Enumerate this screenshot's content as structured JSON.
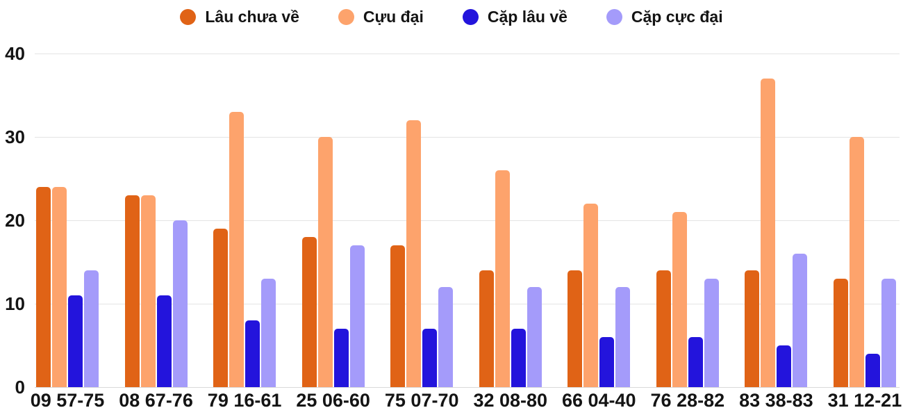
{
  "chart_data": {
    "type": "bar",
    "title": "",
    "xlabel": "",
    "ylabel": "",
    "ylim": [
      0,
      40
    ],
    "yticks": [
      0,
      10,
      20,
      30,
      40
    ],
    "grid": true,
    "legend_position": "top",
    "categories": [
      "09 57-75",
      "08 67-76",
      "79 16-61",
      "25 06-60",
      "75 07-70",
      "32 08-80",
      "66 04-40",
      "76 28-82",
      "83 38-83",
      "31 12-21"
    ],
    "series": [
      {
        "name": "Lâu chưa về",
        "color": "#E06316",
        "values": [
          24,
          23,
          19,
          18,
          17,
          14,
          14,
          14,
          14,
          13
        ]
      },
      {
        "name": "Cựu đại",
        "color": "#FDA36C",
        "values": [
          24,
          23,
          33,
          30,
          32,
          26,
          22,
          21,
          37,
          30
        ]
      },
      {
        "name": "Cặp lâu về",
        "color": "#2314DC",
        "values": [
          11,
          11,
          8,
          7,
          7,
          7,
          6,
          6,
          5,
          4
        ]
      },
      {
        "name": "Cặp cực đại",
        "color": "#A49BFA",
        "values": [
          14,
          20,
          13,
          17,
          12,
          12,
          12,
          13,
          16,
          13
        ]
      }
    ]
  },
  "colors": {
    "background": "#ffffff",
    "gridline": "#e4e4e4",
    "baseline": "#d9d9d9",
    "text": "#141414"
  }
}
